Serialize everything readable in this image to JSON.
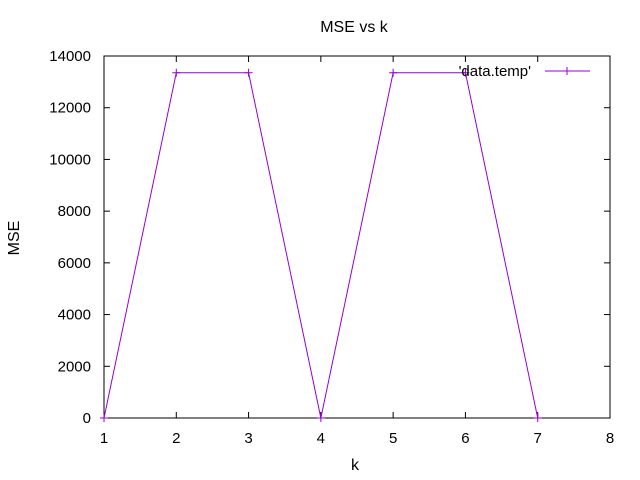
{
  "chart_data": {
    "type": "line",
    "title": "MSE vs k",
    "xlabel": "k",
    "ylabel": "MSE",
    "xlim": [
      1,
      8
    ],
    "ylim": [
      0,
      14000
    ],
    "xticks": [
      1,
      2,
      3,
      4,
      5,
      6,
      7,
      8
    ],
    "yticks": [
      0,
      2000,
      4000,
      6000,
      8000,
      10000,
      12000,
      14000
    ],
    "grid": false,
    "legend_position": "top-right",
    "series": [
      {
        "name": "'data.temp'",
        "color": "#9400d3",
        "marker": "plus",
        "x": [
          1,
          2,
          3,
          4,
          5,
          6,
          7
        ],
        "y": [
          0,
          13350,
          13350,
          0,
          13350,
          13350,
          0
        ]
      }
    ]
  }
}
